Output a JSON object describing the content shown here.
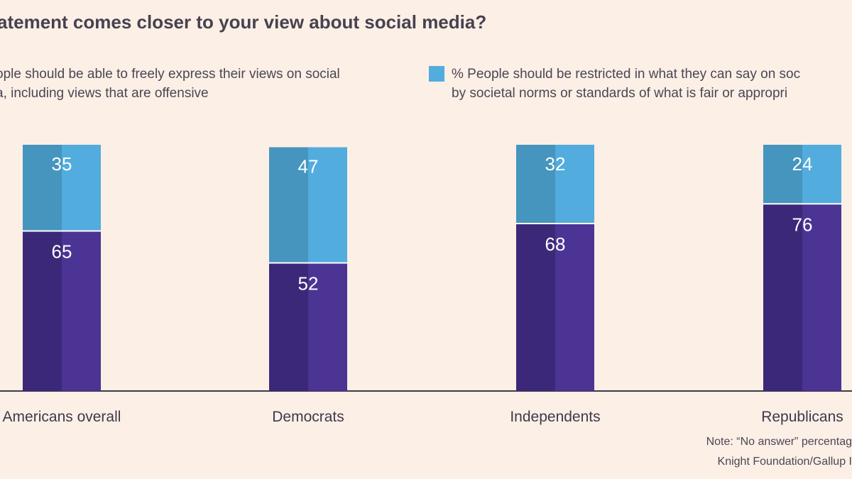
{
  "title": "atement comes closer to your view about social media?",
  "legend": {
    "left_line1": "ople should be able to freely express their views on social",
    "left_line2": "a, including views that are offensive",
    "right_line1": "% People should be restricted in what they can say on soc",
    "right_line2": "by societal norms or standards of what is fair or appropri"
  },
  "colors": {
    "background": "#fcefe6",
    "restricted": "#52acde",
    "restricted_shade": "#4595bf",
    "express": "#4b3493",
    "express_shade": "#3c2879",
    "axis": "#3d3a4b"
  },
  "chart_data": {
    "type": "bar",
    "stacked": true,
    "categories": [
      "Americans overall",
      "Democrats",
      "Independents",
      "Republicans"
    ],
    "series": [
      {
        "name": "People should be able to freely express their views on social media, including views that are offensive",
        "values": [
          65,
          52,
          68,
          76
        ]
      },
      {
        "name": "% People should be restricted in what they can say on social media by societal norms or standards of what is fair or appropriate",
        "values": [
          35,
          47,
          32,
          24
        ]
      }
    ],
    "title": "atement comes closer to your view about social media?",
    "xlabel": "",
    "ylabel": "",
    "ylim": [
      0,
      100
    ]
  },
  "notes": {
    "line1": "Note: “No answer” percentag",
    "line2": "Knight Foundation/Gallup I"
  }
}
